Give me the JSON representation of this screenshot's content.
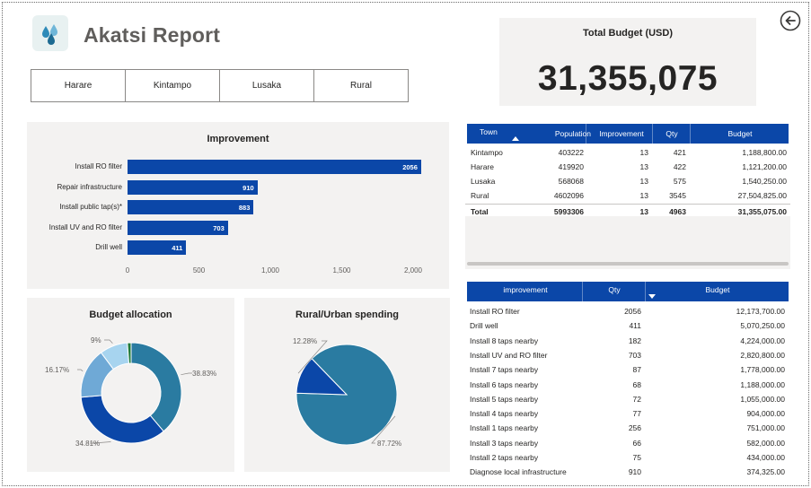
{
  "header": {
    "title": "Akatsi Report",
    "logo_icon": "water-drops-icon",
    "back_icon": "back-arrow-icon"
  },
  "slicers": [
    "Harare",
    "Kintampo",
    "Lusaka",
    "Rural"
  ],
  "kpi": {
    "label": "Total Budget (USD)",
    "value": "31,355,075"
  },
  "improvement_chart": {
    "title": "Improvement",
    "chart_data": {
      "type": "bar",
      "orientation": "horizontal",
      "title": "Improvement",
      "categories": [
        "Install RO filter",
        "Repair infrastructure",
        "Install public tap(s)*",
        "Install UV and RO filter",
        "Drill well"
      ],
      "values": [
        2056,
        910,
        883,
        703,
        411
      ],
      "value_labels": [
        "2056",
        "910",
        "883",
        "703",
        "411"
      ],
      "xlim": [
        0,
        2000
      ],
      "ticks": [
        "0",
        "500",
        "1,000",
        "1,500",
        "2,000"
      ],
      "color": "#0b47a8"
    }
  },
  "town_table": {
    "columns": [
      "Town",
      "Population",
      "Improvement",
      "Qty",
      "Budget"
    ],
    "rows": [
      [
        "Kintampo",
        "403222",
        "13",
        "421",
        "1,188,800.00"
      ],
      [
        "Harare",
        "419920",
        "13",
        "422",
        "1,121,200.00"
      ],
      [
        "Lusaka",
        "568068",
        "13",
        "575",
        "1,540,250.00"
      ],
      [
        "Rural",
        "4602096",
        "13",
        "3545",
        "27,504,825.00"
      ]
    ],
    "total": [
      "Total",
      "5993306",
      "13",
      "4963",
      "31,355,075.00"
    ]
  },
  "improvement_table": {
    "columns": [
      "improvement",
      "Qty",
      "Budget"
    ],
    "rows": [
      [
        "Install RO filter",
        "2056",
        "12,173,700.00"
      ],
      [
        "Drill well",
        "411",
        "5,070,250.00"
      ],
      [
        "Install 8 taps nearby",
        "182",
        "4,224,000.00"
      ],
      [
        "Install UV and RO filter",
        "703",
        "2,820,800.00"
      ],
      [
        "Install 7 taps nearby",
        "87",
        "1,778,000.00"
      ],
      [
        "Install 6 taps nearby",
        "68",
        "1,188,000.00"
      ],
      [
        "Install 5 taps nearby",
        "72",
        "1,055,000.00"
      ],
      [
        "Install 4 taps nearby",
        "77",
        "904,000.00"
      ],
      [
        "Install 1 taps nearby",
        "256",
        "751,000.00"
      ],
      [
        "Install 3 taps nearby",
        "66",
        "582,000.00"
      ],
      [
        "Install 2 taps nearby",
        "75",
        "434,000.00"
      ],
      [
        "Diagnose local infrastructure",
        "910",
        "374,325.00"
      ]
    ]
  },
  "budget_chart": {
    "title": "Budget allocation",
    "chart_data": {
      "type": "pie",
      "variant": "donut",
      "title": "Budget allocation",
      "values": [
        38.83,
        34.81,
        16.17,
        9,
        1.19
      ],
      "labels": [
        "38.83%",
        "34.81%",
        "16.17%",
        "9%",
        ""
      ],
      "colors": [
        "#2a7ba1",
        "#0b47a8",
        "#6fa9d6",
        "#a7d4ef",
        "#1f7a3a"
      ]
    }
  },
  "rural_chart": {
    "title": "Rural/Urban spending",
    "chart_data": {
      "type": "pie",
      "title": "Rural/Urban spending",
      "values": [
        87.72,
        12.28
      ],
      "labels": [
        "87.72%",
        "12.28%"
      ],
      "colors": [
        "#2a7ba1",
        "#0b47a8"
      ]
    }
  }
}
